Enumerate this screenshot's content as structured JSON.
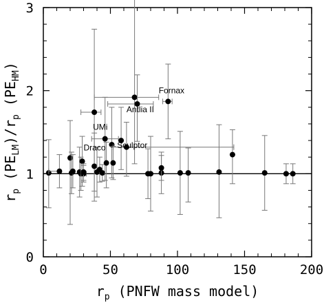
{
  "chart_data": {
    "type": "scatter",
    "xlim": [
      0,
      200
    ],
    "ylim": [
      0,
      3
    ],
    "x_ticks": [
      0,
      50,
      100,
      150,
      200
    ],
    "y_ticks": [
      0,
      1,
      2,
      3
    ],
    "xlabel": {
      "base": "r",
      "sub": "p",
      "rest": " (PNFW mass model)"
    },
    "ylabel": {
      "p1": "r",
      "s1": "p",
      "p2": " (PE",
      "s2": "LM",
      "p3": ")/r",
      "s3": "p",
      "p4": " (PE",
      "s4": "HM",
      "p5": ")"
    },
    "reference_line_y": 1,
    "grid": false,
    "points": [
      {
        "x": 4,
        "y": 1.01,
        "xerr": [
          0,
          0
        ],
        "yerr": [
          0.42,
          0.4
        ]
      },
      {
        "x": 12,
        "y": 1.03,
        "xerr": [
          8,
          0
        ],
        "yerr": [
          0.2,
          0.2
        ]
      },
      {
        "x": 20,
        "y": 1.19,
        "xerr": [
          0,
          0
        ],
        "yerr": [
          0.8,
          0.45
        ]
      },
      {
        "x": 21,
        "y": 1.01,
        "xerr": [
          0,
          0
        ],
        "yerr": [
          0.25,
          0.25
        ]
      },
      {
        "x": 22,
        "y": 1.03,
        "xerr": [
          0,
          0
        ],
        "yerr": [
          0.2,
          0.2
        ]
      },
      {
        "x": 27,
        "y": 1.02,
        "xerr": [
          0,
          0
        ],
        "yerr": [
          0.3,
          0.3
        ]
      },
      {
        "x": 28,
        "y": 1.0,
        "xerr": [
          0,
          0
        ],
        "yerr": [
          0.2,
          0.2
        ]
      },
      {
        "x": 29,
        "y": 1.15,
        "xerr": [
          0,
          0
        ],
        "yerr": [
          0.3,
          0.3
        ]
      },
      {
        "x": 30,
        "y": 1.0,
        "xerr": [
          2,
          2
        ],
        "yerr": [
          0.1,
          0.1
        ]
      },
      {
        "x": 30,
        "y": 1.02,
        "xerr": [
          0,
          0
        ],
        "yerr": [
          0.1,
          0.1
        ]
      },
      {
        "x": 38,
        "y": 1.74,
        "xerr": [
          10,
          5
        ],
        "yerr": [
          0.95,
          1.0
        ]
      },
      {
        "x": 38,
        "y": 1.09,
        "xerr": [
          0,
          0
        ],
        "yerr": [
          0.42,
          0.4
        ]
      },
      {
        "x": 40,
        "y": 1.02,
        "xerr": [
          0,
          0
        ],
        "yerr": [
          0.3,
          0.3
        ]
      },
      {
        "x": 42,
        "y": 1.05,
        "xerr": [
          0,
          0
        ],
        "yerr": [
          0.15,
          0.15
        ]
      },
      {
        "x": 44,
        "y": 1.01,
        "xerr": [
          0,
          0
        ],
        "yerr": [
          0.1,
          0.1
        ]
      },
      {
        "x": 46,
        "y": 1.42,
        "xerr": [
          10,
          10
        ],
        "yerr": [
          0.5,
          0.5
        ]
      },
      {
        "x": 47,
        "y": 1.13,
        "xerr": [
          0,
          0
        ],
        "yerr": [
          0.3,
          0.25
        ]
      },
      {
        "x": 51,
        "y": 1.35,
        "xerr": [
          0,
          0
        ],
        "yerr": [
          0.4,
          0.45
        ]
      },
      {
        "x": 52,
        "y": 1.13,
        "xerr": [
          0,
          0
        ],
        "yerr": [
          0.2,
          0.2
        ]
      },
      {
        "x": 58,
        "y": 1.4,
        "xerr": [
          0,
          0
        ],
        "yerr": [
          0.35,
          0.4
        ]
      },
      {
        "x": 62,
        "y": 1.32,
        "xerr": [
          10,
          80
        ],
        "yerr": [
          0.35,
          0.3
        ]
      },
      {
        "x": 68,
        "y": 1.92,
        "xerr": [
          30,
          18
        ],
        "yerr": [
          0.8,
          1.2
        ]
      },
      {
        "x": 70,
        "y": 1.84,
        "xerr": [
          22,
          12
        ],
        "yerr": [
          0.45,
          0.35
        ]
      },
      {
        "x": 78,
        "y": 1.0,
        "xerr": [
          0,
          0
        ],
        "yerr": [
          0.3,
          0.3
        ]
      },
      {
        "x": 80,
        "y": 1.0,
        "xerr": [
          0,
          0
        ],
        "yerr": [
          0.45,
          0.45
        ]
      },
      {
        "x": 88,
        "y": 1.01,
        "xerr": [
          0,
          0
        ],
        "yerr": [
          0.25,
          0.25
        ]
      },
      {
        "x": 88,
        "y": 1.07,
        "xerr": [
          0,
          0
        ],
        "yerr": [
          0.15,
          0.15
        ]
      },
      {
        "x": 93,
        "y": 1.87,
        "xerr": [
          4,
          3
        ],
        "yerr": [
          0.45,
          0.45
        ]
      },
      {
        "x": 102,
        "y": 1.01,
        "xerr": [
          0,
          0
        ],
        "yerr": [
          0.5,
          0.5
        ]
      },
      {
        "x": 108,
        "y": 1.01,
        "xerr": [
          0,
          0
        ],
        "yerr": [
          0.35,
          0.3
        ]
      },
      {
        "x": 131,
        "y": 1.02,
        "xerr": [
          0,
          0
        ],
        "yerr": [
          0.55,
          0.57
        ]
      },
      {
        "x": 141,
        "y": 1.23,
        "xerr": [
          0,
          0
        ],
        "yerr": [
          0.35,
          0.3
        ]
      },
      {
        "x": 165,
        "y": 1.01,
        "xerr": [
          0,
          0
        ],
        "yerr": [
          0.45,
          0.45
        ]
      },
      {
        "x": 181,
        "y": 1.0,
        "xerr": [
          0,
          0
        ],
        "yerr": [
          0.12,
          0.12
        ]
      },
      {
        "x": 186,
        "y": 1.0,
        "xerr": [
          0,
          0
        ],
        "yerr": [
          0.12,
          0.12
        ]
      }
    ],
    "annotations": [
      {
        "text": "Fornax",
        "x": 86,
        "y": 1.97
      },
      {
        "text": "Antlia II",
        "x": 62,
        "y": 1.74
      },
      {
        "text": "UMi",
        "x": 37,
        "y": 1.53
      },
      {
        "text": "Draco",
        "x": 30,
        "y": 1.28
      },
      {
        "text": "Sculptor",
        "x": 55,
        "y": 1.31
      }
    ]
  }
}
